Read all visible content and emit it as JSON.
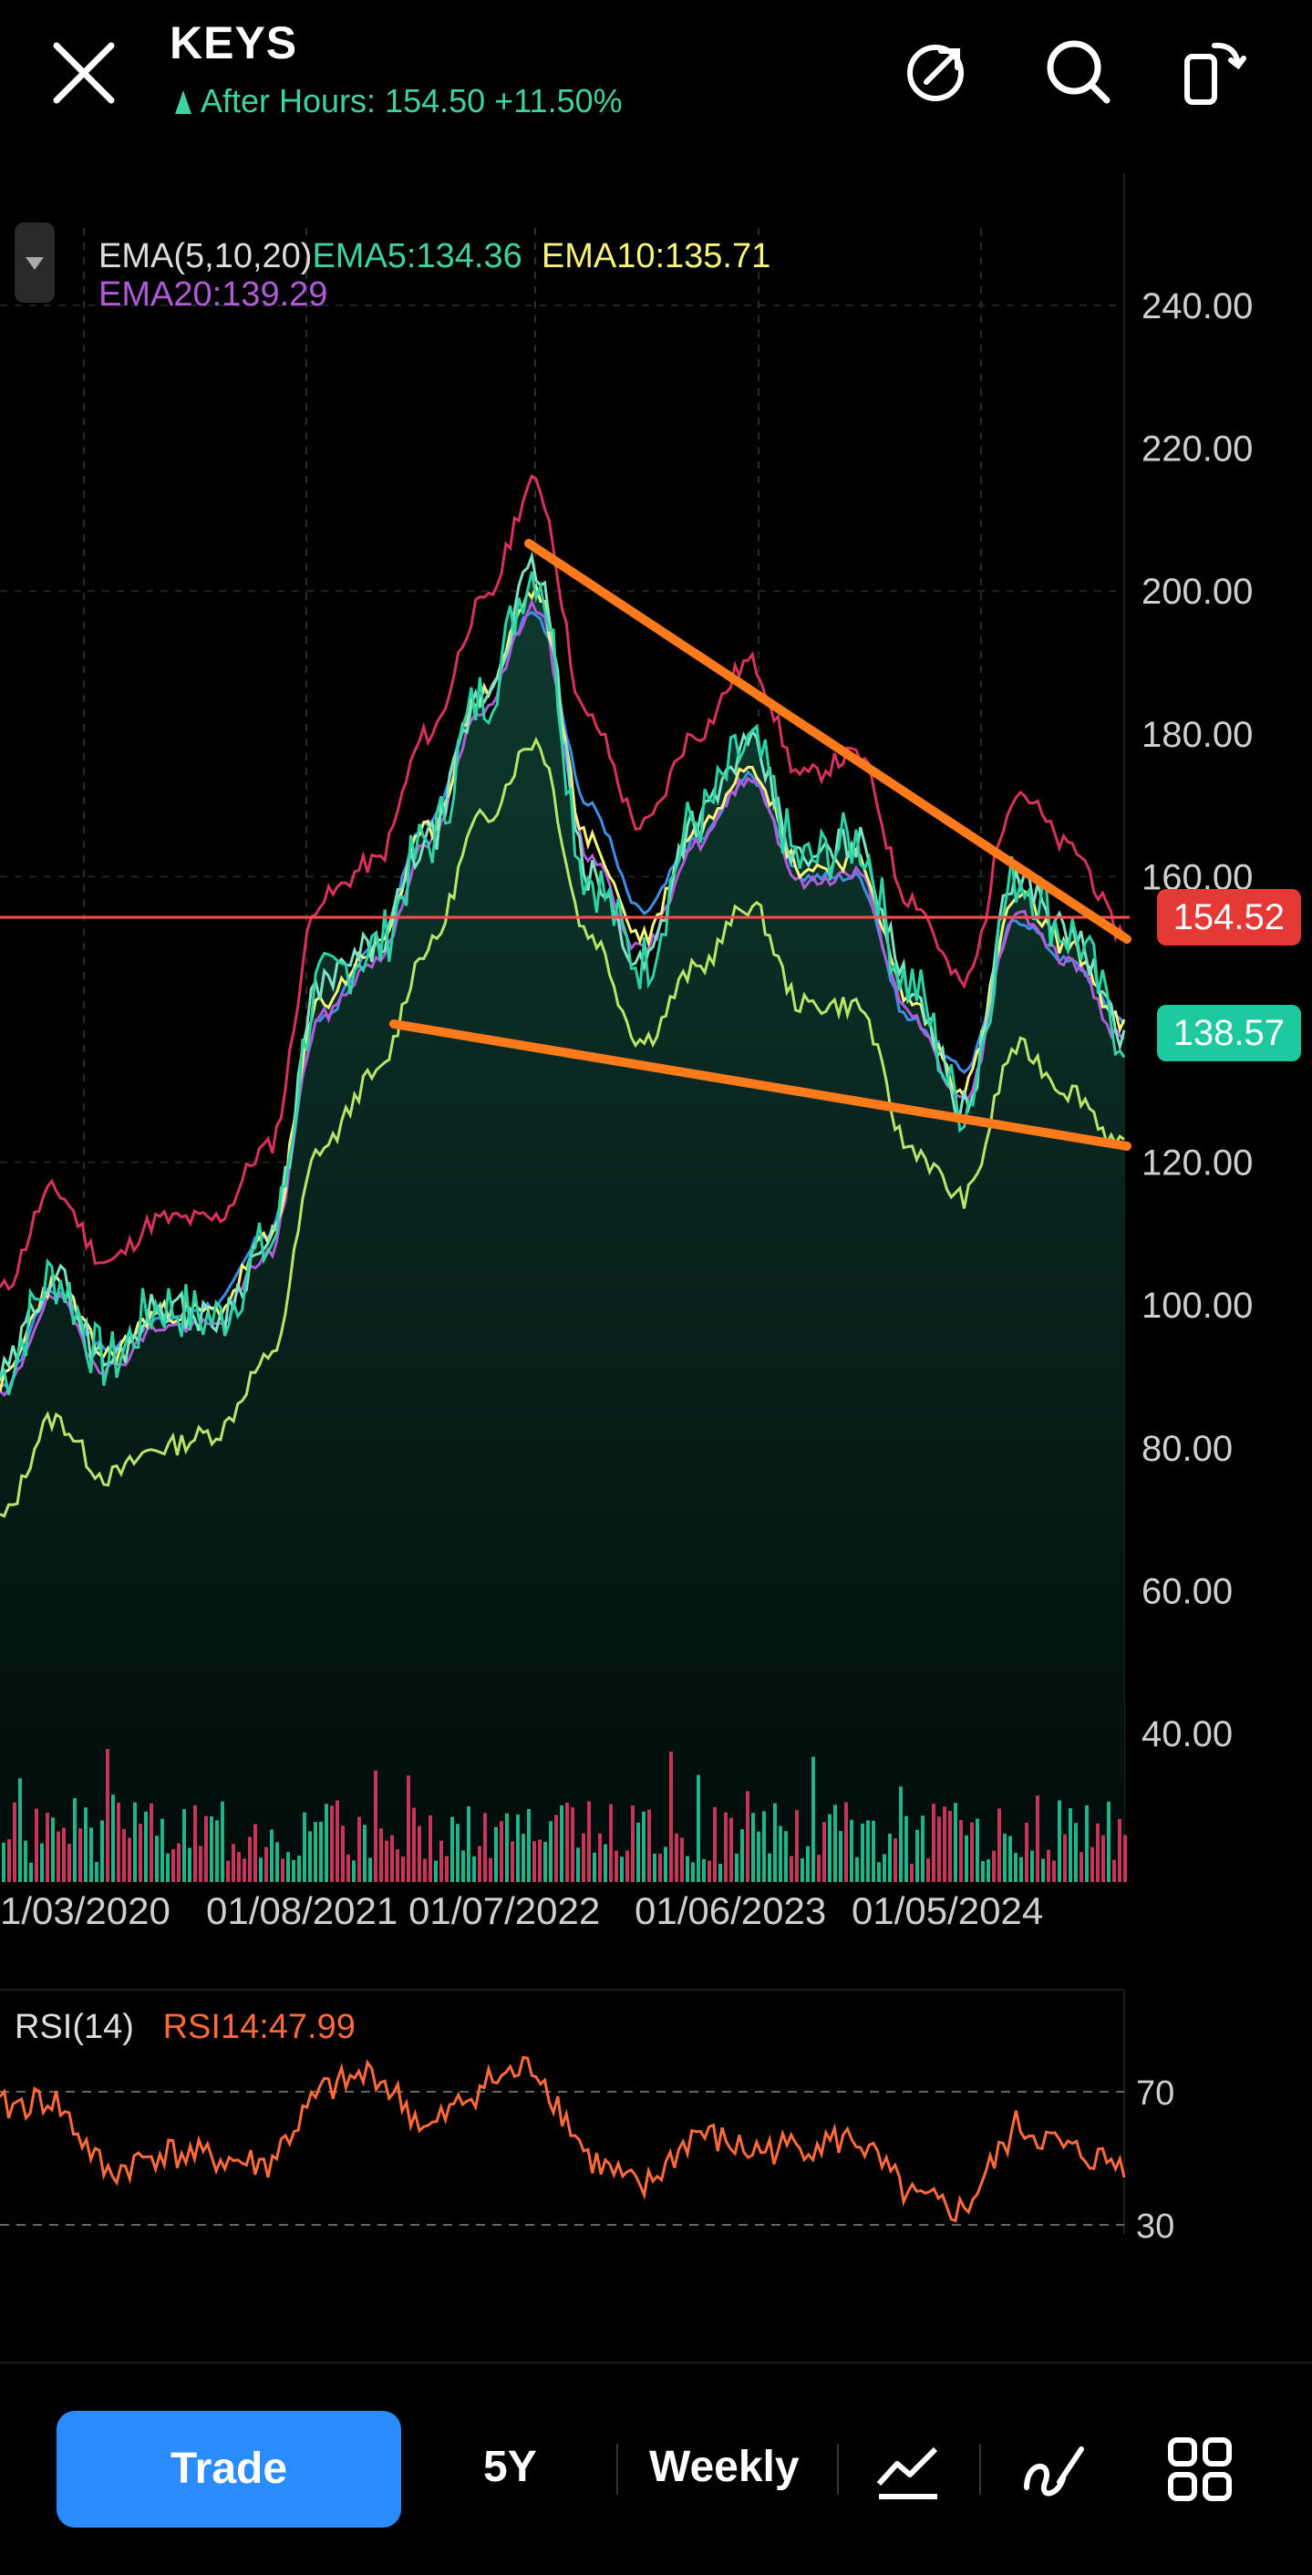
{
  "header": {
    "symbol": "KEYS",
    "after_hours": "After Hours: 154.50 +11.50%"
  },
  "legend": {
    "ema_label": "EMA(5,10,20)",
    "ema5": "EMA5:134.36",
    "ema10": "EMA10:135.71",
    "ema20": "EMA20:139.29"
  },
  "price_axis": [
    "240.00",
    "220.00",
    "200.00",
    "180.00",
    "160.00",
    "120.00",
    "100.00",
    "80.00",
    "60.00",
    "40.00"
  ],
  "tags": {
    "reference": "154.52",
    "current": "138.57"
  },
  "date_axis": [
    "1/03/2020",
    "01/08/2021",
    "01/07/2022",
    "01/06/2023",
    "01/05/2024"
  ],
  "rsi": {
    "label": "RSI(14)",
    "value": "RSI14:47.99",
    "axis": [
      "70",
      "30"
    ]
  },
  "bottom_bar": {
    "trade": "Trade",
    "range": "5Y",
    "interval": "Weekly"
  },
  "colors": {
    "price": "#2ed3a5",
    "ema5": "#3fd1a3",
    "ema10": "#f6f27a",
    "ema20": "#b05bd6",
    "bollinger_upper": "#d8325c",
    "bollinger_lower": "#b7e56a",
    "ema_blue": "#3d8fe6",
    "trendline": "#ff7a1a",
    "reference_line": "#ff4d4d",
    "rsi": "#ff6a3a",
    "trade_button": "#2a8cff"
  },
  "chart_data": {
    "type": "line",
    "title": "",
    "ylim": [
      20,
      250
    ],
    "x": [
      "2020-01",
      "2020-04",
      "2020-07",
      "2020-10",
      "2021-01",
      "2021-04",
      "2021-07",
      "2021-10",
      "2022-01",
      "2022-04",
      "2022-07",
      "2022-10",
      "2023-01",
      "2023-04",
      "2023-07",
      "2023-10",
      "2024-01",
      "2024-04",
      "2024-07",
      "2024-10",
      "2025-01",
      "2025-03"
    ],
    "series": [
      {
        "values": [
          90,
          104,
          92,
          100,
          98,
          108,
          145,
          150,
          165,
          185,
          203,
          160,
          148,
          168,
          178,
          162,
          165,
          145,
          128,
          160,
          152,
          138
        ]
      },
      {
        "values": [
          88,
          102,
          94,
          98,
          100,
          110,
          140,
          150,
          168,
          186,
          197,
          170,
          155,
          165,
          174,
          160,
          160,
          140,
          133,
          154,
          148,
          140
        ]
      }
    ],
    "rsi_values": [
      65,
      68,
      45,
      52,
      50,
      48,
      70,
      76,
      58,
      72,
      78,
      50,
      40,
      58,
      52,
      54,
      56,
      38,
      34,
      60,
      52,
      48
    ]
  }
}
